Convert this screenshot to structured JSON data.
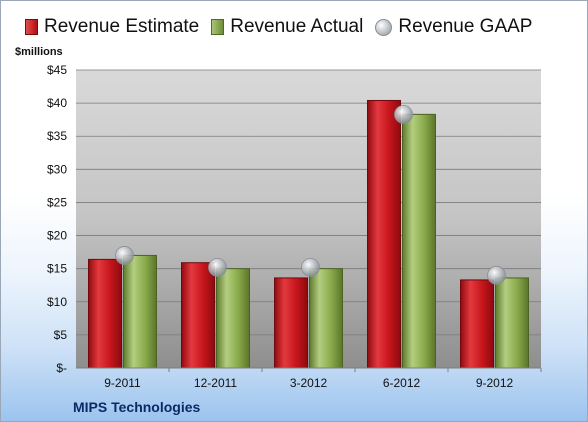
{
  "chart_data": {
    "type": "bar",
    "ylabel": "$millions",
    "footer": "MIPS Technologies",
    "categories": [
      "9-2011",
      "12-2011",
      "3-2012",
      "6-2012",
      "9-2012"
    ],
    "series": [
      {
        "name": "Revenue Estimate",
        "type": "bar",
        "values": [
          16.4,
          15.9,
          13.6,
          40.4,
          13.3
        ]
      },
      {
        "name": "Revenue Actual",
        "type": "bar",
        "values": [
          17.0,
          15.0,
          15.0,
          38.3,
          13.6
        ]
      },
      {
        "name": "Revenue GAAP",
        "type": "marker",
        "values": [
          17.0,
          15.2,
          15.2,
          38.3,
          14.0
        ]
      }
    ],
    "ylim": [
      0,
      45
    ],
    "yticks": [
      "$-",
      "$5",
      "$10",
      "$15",
      "$20",
      "$25",
      "$30",
      "$35",
      "$40",
      "$45"
    ],
    "grid": true,
    "legend": "top",
    "colors": {
      "estimate": "#c8161d",
      "actual": "#8aab4c",
      "gaap": "#b9bec4"
    }
  }
}
